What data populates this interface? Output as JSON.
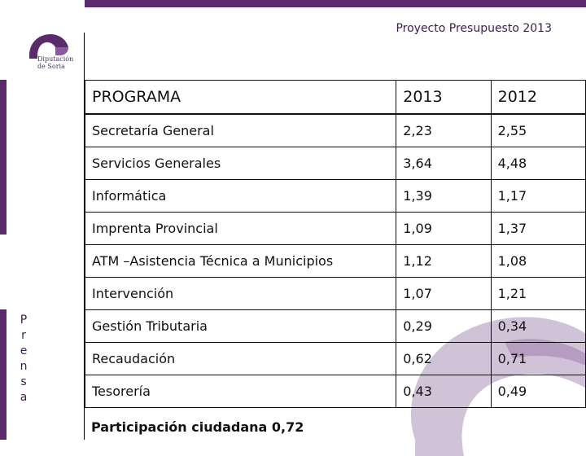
{
  "header": {
    "title": "Proyecto Presupuesto 2013"
  },
  "logo": {
    "line1": "Diputación",
    "line2": "de Soria"
  },
  "sidebar": {
    "letters": [
      "P",
      "r",
      "e",
      "n",
      "s",
      "a"
    ]
  },
  "table": {
    "headers": [
      "PROGRAMA",
      "2013",
      "2012"
    ],
    "rows": [
      [
        "Secretaría General",
        "2,23",
        "2,55"
      ],
      [
        "Servicios Generales",
        "3,64",
        "4,48"
      ],
      [
        "Informática",
        "1,39",
        "1,17"
      ],
      [
        "Imprenta Provincial",
        "1,09",
        "1,37"
      ],
      [
        "ATM –Asistencia Técnica a Municipios",
        "1,12",
        "1,08"
      ],
      [
        "Intervención",
        "1,07",
        "1,21"
      ],
      [
        "Gestión Tributaria",
        "0,29",
        "0,34"
      ],
      [
        "Recaudación",
        "0,62",
        "0,71"
      ],
      [
        "Tesorería",
        "0,43",
        "0,49"
      ]
    ]
  },
  "footer": {
    "note": "Participación ciudadana 0,72"
  },
  "colors": {
    "brand": "#5b2a6b",
    "watermark": "#c8b7d0"
  }
}
